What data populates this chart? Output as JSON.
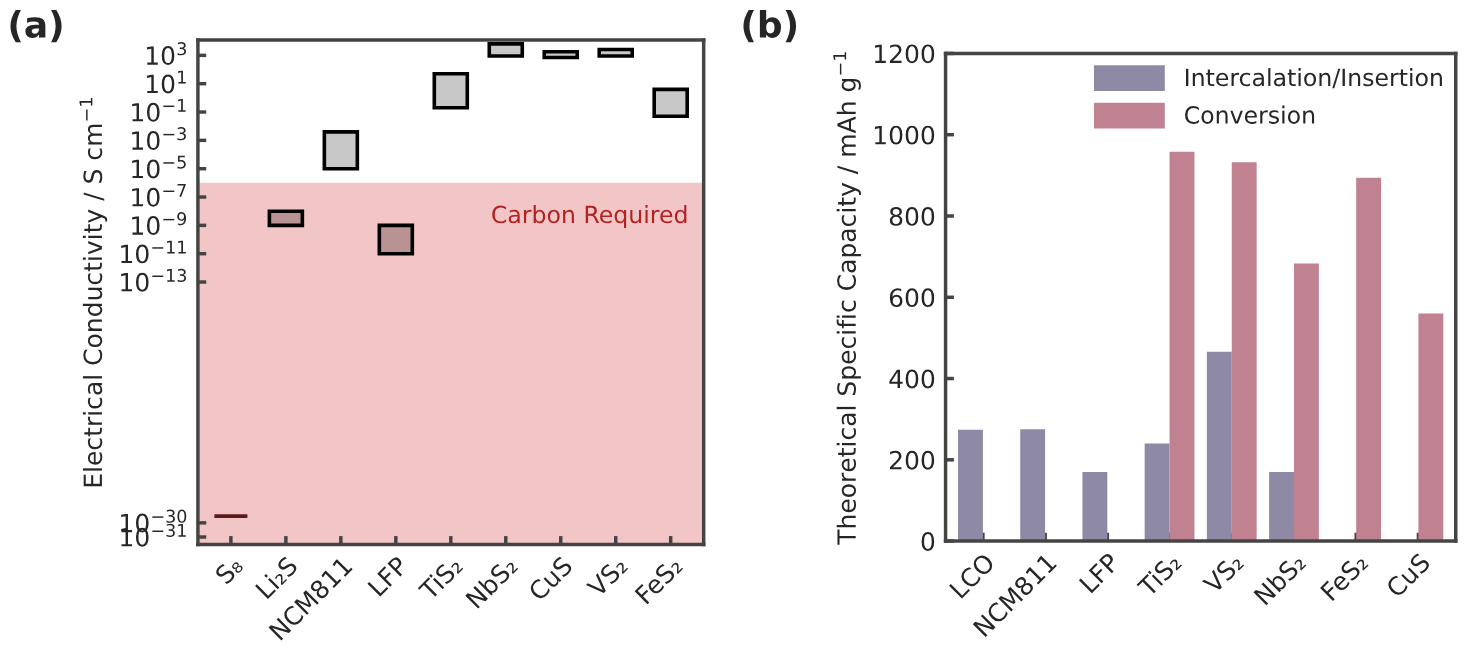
{
  "chart_data": [
    {
      "type": "bar",
      "title": "(a)",
      "ylabel": "Electrical Conductivity / S cm$^{−1}$",
      "categories": [
        "S₈",
        "Li₂S",
        "NCM811",
        "LFP",
        "TiS₂",
        "NbS₂",
        "CuS",
        "VS₂",
        "FeS₂"
      ],
      "base": [
        3e-30,
        1e-09,
        1e-05,
        1e-11,
        0.2,
        900,
        700,
        900,
        0.05
      ],
      "values": [
        0,
        9e-09,
        0.00399,
        9.9e-10,
        49.8,
        5600,
        1100,
        1700,
        3.95
      ],
      "colors": [
        "#5a1a1a",
        "#b99393",
        "#c8c8c8",
        "#b99393",
        "#c8c8c8",
        "#c8c8c8",
        "#c8c8c8",
        "#c8c8c8",
        "#c8c8c8"
      ],
      "log": true,
      "ylim": [
        3e-32,
        12000
      ],
      "yticks": [
        {
          "value": 1e-31,
          "label": "10$^{−31}$"
        },
        {
          "value": 1e-30,
          "label": "10$^{−30}$"
        },
        {
          "value": 1e-13,
          "label": "10$^{−13}$"
        },
        {
          "value": 1e-11,
          "label": "10$^{−11}$"
        },
        {
          "value": 1e-09,
          "label": "10$^{−9}$"
        },
        {
          "value": 1e-07,
          "label": "10$^{−7}$"
        },
        {
          "value": 1e-05,
          "label": "10$^{−5}$"
        },
        {
          "value": 0.001,
          "label": "10$^{−3}$"
        },
        {
          "value": 0.1,
          "label": "10$^{−1}$"
        },
        {
          "value": 10,
          "label": "10$^{1}$"
        },
        {
          "value": 1000,
          "label": "10$^{3}$"
        }
      ],
      "bands": [
        {
          "axis": "y",
          "from": 3e-32,
          "to": 1e-06,
          "label": "Carbon Required",
          "color": "#f2c6c6"
        }
      ],
      "grid": false
    },
    {
      "type": "bar",
      "title": "(b)",
      "ylabel": "Theoretical Specific Capacity / mAh g$^{−1}$",
      "categories": [
        "LCO",
        "NCM811",
        "LFP",
        "TiS₂",
        "VS₂",
        "NbS₂",
        "FeS₂",
        "CuS"
      ],
      "series": [
        {
          "name": "Intercalation/Insertion",
          "color": "#8e8aa6",
          "values": [
            274,
            275,
            170,
            240,
            466,
            170,
            null,
            null
          ]
        },
        {
          "name": "Conversion",
          "color": "#c08290",
          "values": [
            null,
            null,
            null,
            958,
            932,
            683,
            894,
            560
          ]
        }
      ],
      "ylim": [
        0,
        1200
      ],
      "yticks": [
        0,
        200,
        400,
        600,
        800,
        1000,
        1200
      ],
      "grid": false,
      "legend": "top right"
    }
  ]
}
